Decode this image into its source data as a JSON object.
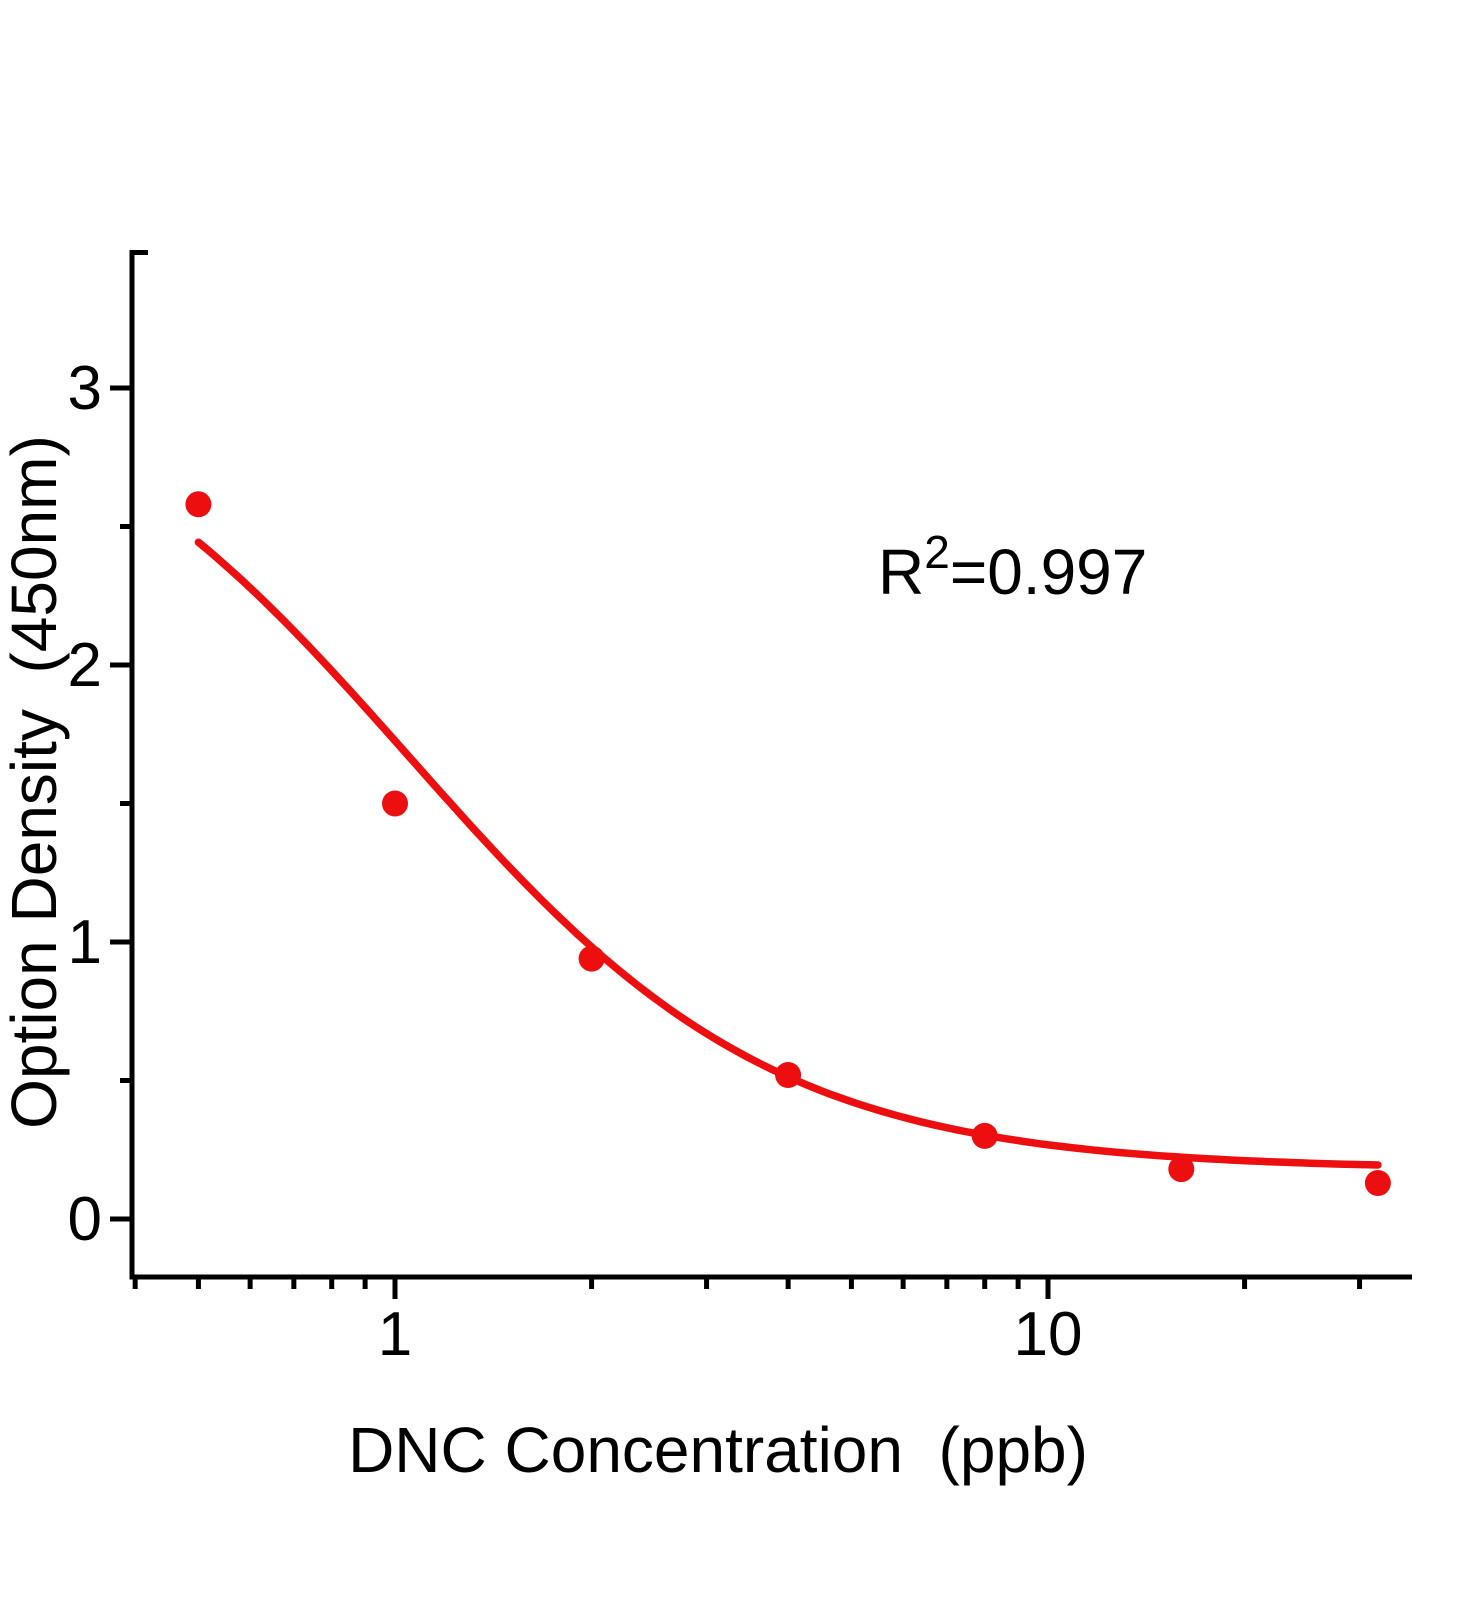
{
  "figure": {
    "background": "#ffffff",
    "axis_color": "#000000",
    "accent_red": "#ED0E10"
  },
  "chart_data": {
    "type": "scatter",
    "title": "",
    "xlabel": "DNC Concentration  (ppb)",
    "ylabel": "Option Density  (450nm)",
    "x_scale": "log",
    "xlim": [
      0.4,
      36
    ],
    "ylim": [
      -0.2,
      3.5
    ],
    "grid": false,
    "legend": "none",
    "x_axis": {
      "major_ticks": [
        1,
        10
      ],
      "major_labels": [
        "1",
        "10"
      ],
      "minor_ticks": [
        0.4,
        0.5,
        0.6,
        0.7,
        0.8,
        0.9,
        2,
        3,
        4,
        5,
        6,
        7,
        8,
        9,
        20,
        30
      ]
    },
    "y_axis": {
      "major_ticks": [
        0,
        1,
        2,
        3
      ],
      "major_labels": [
        "0",
        "1",
        "2",
        "3"
      ],
      "minor_ticks": [
        0.5,
        1.5,
        2.5
      ]
    },
    "series": [
      {
        "name": "standard-points",
        "type": "scatter",
        "color": "#ED0E10",
        "marker": "circle",
        "marker_radius": 13,
        "x": [
          0.5,
          1,
          2,
          4,
          8,
          16,
          32
        ],
        "y": [
          2.58,
          1.5,
          0.94,
          0.52,
          0.3,
          0.18,
          0.13
        ]
      },
      {
        "name": "4pl-fit-curve",
        "type": "line",
        "color": "#ED0E10",
        "width": 7.5,
        "x_range": [
          0.5,
          32
        ],
        "fit_4pl": {
          "a": 3.16,
          "b": 1.55,
          "c": 1.05,
          "d": 0.18
        },
        "sample_points": [
          {
            "x": 0.5,
            "y": 2.44
          },
          {
            "x": 1,
            "y": 1.7
          },
          {
            "x": 2,
            "y": 0.97
          },
          {
            "x": 4,
            "y": 0.51
          },
          {
            "x": 8,
            "y": 0.3
          },
          {
            "x": 16,
            "y": 0.22
          },
          {
            "x": 32,
            "y": 0.19
          }
        ]
      }
    ],
    "annotation": {
      "prefix": "R",
      "sup": "2",
      "suffix": "=0.997",
      "value": "0.997"
    }
  }
}
